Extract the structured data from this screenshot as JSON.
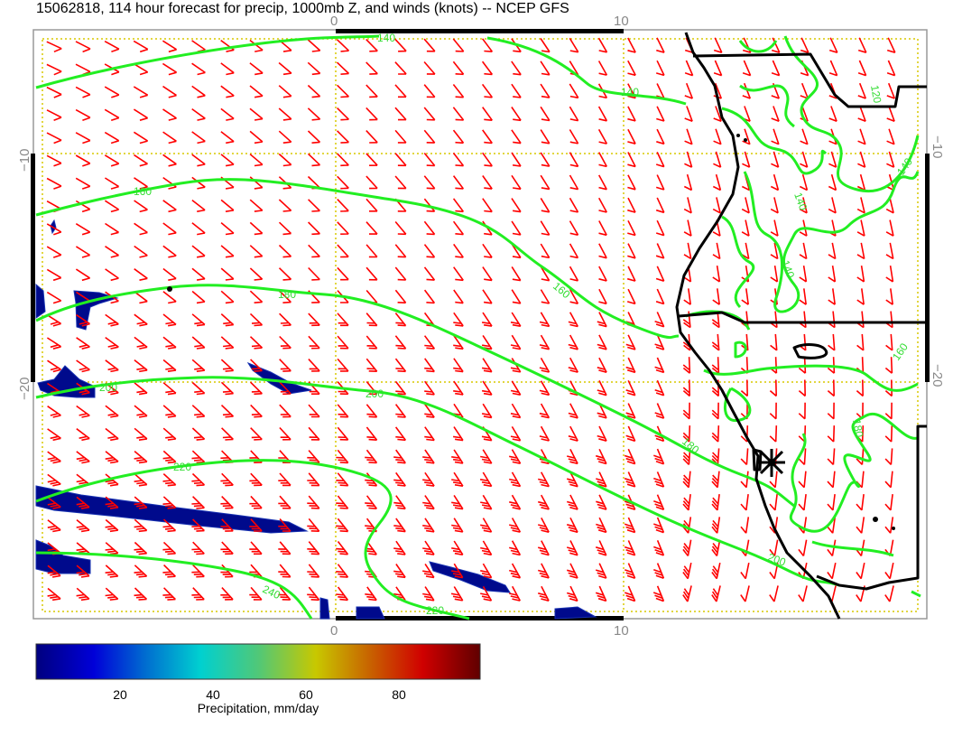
{
  "title": "15062818, 114 hour forecast for precip, 1000mb Z, and winds (knots) -- NCEP GFS",
  "axes": {
    "lon_ticks": [
      "0",
      "10"
    ],
    "lat_ticks": [
      "−10",
      "−20"
    ]
  },
  "contours": {
    "height_labels": [
      "140",
      "160",
      "180",
      "200",
      "220",
      "240",
      "140",
      "160",
      "200",
      "220",
      "200",
      "180"
    ],
    "land_labels": [
      "140",
      "140",
      "140",
      "120",
      "160",
      "180"
    ],
    "color": "#22ee22"
  },
  "wind_barbs": {
    "color": "#ff0000",
    "units": "knots"
  },
  "coastline_color": "#000000",
  "colorbar": {
    "label": "Precipitation, mm/day",
    "ticks": [
      "20",
      "40",
      "60",
      "80"
    ],
    "colormap": [
      "#00007f",
      "#0000d8",
      "#0078d0",
      "#00d0d0",
      "#50c878",
      "#c8c800",
      "#c86400",
      "#d00000",
      "#600000"
    ]
  }
}
